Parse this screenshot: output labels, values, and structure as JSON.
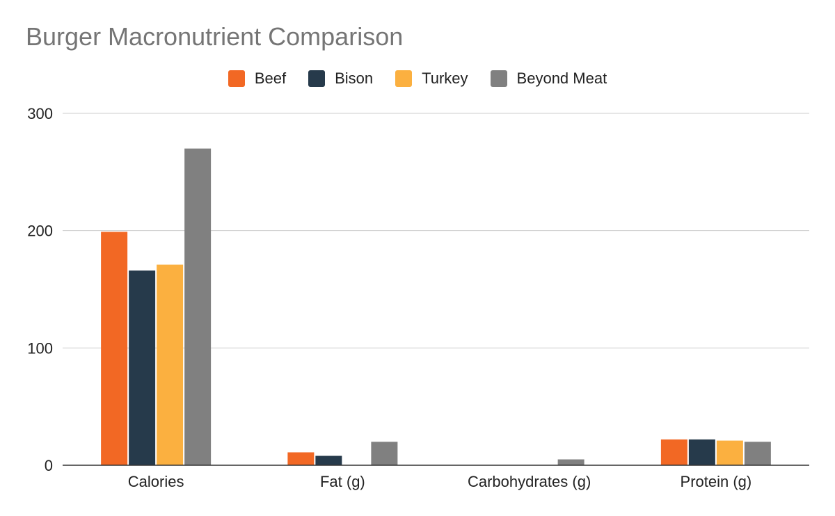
{
  "chart_data": {
    "type": "bar",
    "title": "Burger Macronutrient Comparison",
    "xlabel": "",
    "ylabel": "",
    "categories": [
      "Calories",
      "Fat (g)",
      "Carbohydrates (g)",
      "Protein (g)"
    ],
    "series": [
      {
        "name": "Beef",
        "color": "#f26824",
        "values": [
          199,
          11,
          0,
          22
        ]
      },
      {
        "name": "Bison",
        "color": "#263a4b",
        "values": [
          166,
          8,
          0,
          22
        ]
      },
      {
        "name": "Turkey",
        "color": "#fbb040",
        "values": [
          171,
          0,
          0,
          21
        ]
      },
      {
        "name": "Beyond Meat",
        "color": "#808080",
        "values": [
          270,
          20,
          5,
          20
        ]
      }
    ],
    "ylim": [
      0,
      300
    ],
    "yticks": [
      "0",
      "100",
      "200",
      "300"
    ],
    "grid": true,
    "legend": "top-center"
  }
}
